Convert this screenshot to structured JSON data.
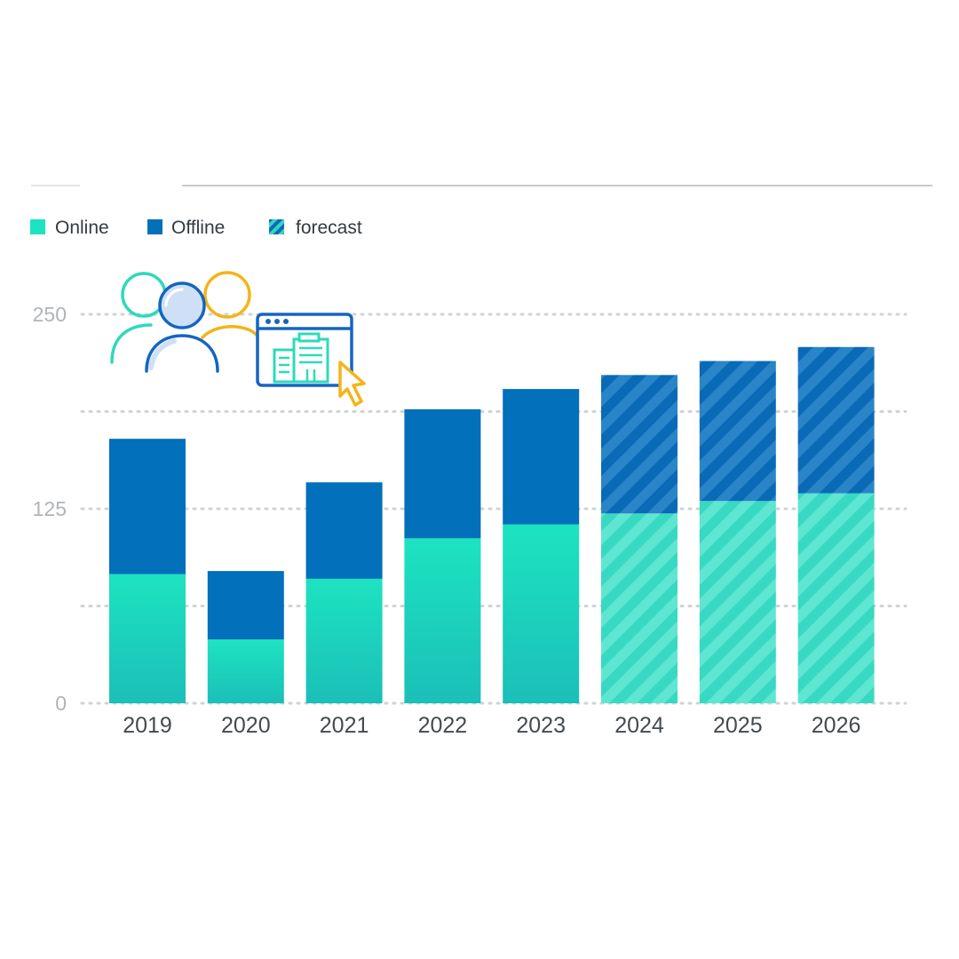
{
  "legend": {
    "online": "Online",
    "offline": "Offline",
    "forecast": "forecast"
  },
  "colors": {
    "online": "#1de3c0",
    "online_bottom": "#1bbfb8",
    "offline": "#0270bb",
    "grid": "#cfd3d6",
    "top_rule": "#c8cbce",
    "illus_teal": "#2fd9b9",
    "illus_blue": "#1565c0",
    "illus_yellow": "#f4b418"
  },
  "icons": [
    "people-group-icon",
    "building-browser-icon",
    "cursor-icon"
  ],
  "chart_data": {
    "type": "bar",
    "stacked": true,
    "categories": [
      "2019",
      "2020",
      "2021",
      "2022",
      "2023",
      "2024",
      "2025",
      "2026"
    ],
    "series": [
      {
        "name": "Online",
        "values": [
          83,
          41,
          80,
          106,
          115,
          122,
          130,
          135
        ]
      },
      {
        "name": "Offline",
        "values": [
          87,
          44,
          62,
          83,
          87,
          89,
          90,
          94
        ]
      }
    ],
    "forecast_categories": [
      "2024",
      "2025",
      "2026"
    ],
    "yticks": [
      0,
      125,
      250
    ],
    "ylim": [
      0,
      250
    ],
    "grid": true,
    "legend_position": "top-left",
    "title": "",
    "xlabel": "",
    "ylabel": ""
  }
}
